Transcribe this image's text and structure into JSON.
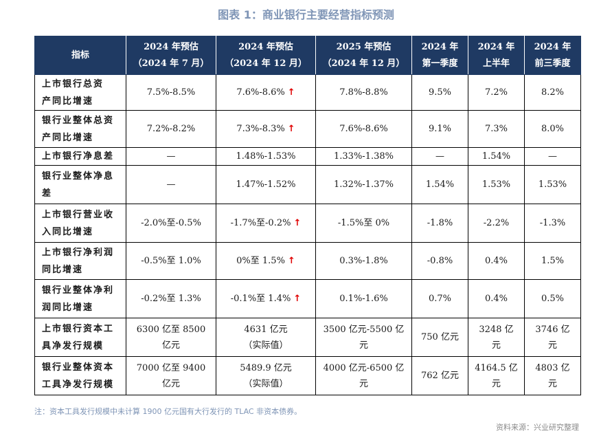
{
  "title": "图表 1：商业银行主要经营指标预测",
  "header": [
    {
      "l1": "指标",
      "l2": ""
    },
    {
      "l1": "2024 年预估",
      "l2": "（2024 年 7 月）"
    },
    {
      "l1": "2024 年预估",
      "l2": "（2024 年 12 月）"
    },
    {
      "l1": "2025 年预估",
      "l2": "（2024 年 12 月）"
    },
    {
      "l1": "2024 年",
      "l2": "第一季度"
    },
    {
      "l1": "2024 年",
      "l2": "上半年"
    },
    {
      "l1": "2024 年",
      "l2": "前三季度"
    }
  ],
  "up_arrow": "↑",
  "rows": [
    {
      "label": [
        "上市银行总资",
        "产同比增速"
      ],
      "c1": [
        "7.5%-8.5%"
      ],
      "c2": [
        "7.6%-8.6%"
      ],
      "c2_up": true,
      "c3": [
        "7.8%-8.8%"
      ],
      "c4": [
        "9.5%"
      ],
      "c5": [
        "7.2%"
      ],
      "c6": [
        "8.2%"
      ]
    },
    {
      "label": [
        "银行业整体总资",
        "产同比增速"
      ],
      "c1": [
        "7.2%-8.2%"
      ],
      "c2": [
        "7.3%-8.3%"
      ],
      "c2_up": true,
      "c3": [
        "7.6%-8.6%"
      ],
      "c4": [
        "9.1%"
      ],
      "c5": [
        "7.3%"
      ],
      "c6": [
        "8.0%"
      ]
    },
    {
      "label": [
        "上市银行净息差"
      ],
      "c1": [
        "—"
      ],
      "c2": [
        "1.48%-1.53%"
      ],
      "c2_up": false,
      "c3": [
        "1.33%-1.38%"
      ],
      "c4": [
        "—"
      ],
      "c5": [
        "1.54%"
      ],
      "c6": [
        "—"
      ]
    },
    {
      "label": [
        "银行业整体净息",
        "差"
      ],
      "c1": [
        "—"
      ],
      "c2": [
        "1.47%-1.52%"
      ],
      "c2_up": false,
      "c3": [
        "1.32%-1.37%"
      ],
      "c4": [
        "1.54%"
      ],
      "c5": [
        "1.53%"
      ],
      "c6": [
        "1.53%"
      ]
    },
    {
      "label": [
        "上市银行营业收",
        "入同比增速"
      ],
      "c1": [
        "-2.0%至-0.5%"
      ],
      "c2": [
        "-1.7%至-0.2%"
      ],
      "c2_up": true,
      "c3": [
        "-1.5%至 0%"
      ],
      "c4": [
        "-1.8%"
      ],
      "c5": [
        "-2.2%"
      ],
      "c6": [
        "-1.3%"
      ]
    },
    {
      "label": [
        "上市银行净利润",
        "同比增速"
      ],
      "c1": [
        "-0.5%至 1.0%"
      ],
      "c2": [
        "0%至 1.5%"
      ],
      "c2_up": true,
      "c3": [
        "0.3%-1.8%"
      ],
      "c4": [
        "-0.8%"
      ],
      "c5": [
        "0.4%"
      ],
      "c6": [
        "1.5%"
      ]
    },
    {
      "label": [
        "银行业整体净利",
        "润同比增速"
      ],
      "c1": [
        "-0.2%至 1.3%"
      ],
      "c2": [
        "-0.1%至 1.4%"
      ],
      "c2_up": true,
      "c3": [
        "0.1%-1.6%"
      ],
      "c4": [
        "0.7%"
      ],
      "c5": [
        "0.4%"
      ],
      "c6": [
        "0.5%"
      ]
    },
    {
      "label": [
        "上市银行资本工",
        "具净发行规模"
      ],
      "c1": [
        "6300 亿至 8500",
        "亿元"
      ],
      "c2": [
        "4631 亿元",
        "（实际值）"
      ],
      "c2_up": false,
      "c3": [
        "3500 亿元-5500 亿",
        "元"
      ],
      "c4": [
        "750 亿元"
      ],
      "c5": [
        "3248 亿",
        "元"
      ],
      "c6": [
        "3746 亿",
        "元"
      ]
    },
    {
      "label": [
        "银行业整体资本",
        "工具净发行规模"
      ],
      "c1": [
        "7000 亿至 9400",
        "亿元"
      ],
      "c2": [
        "5489.9 亿元",
        "（实际值）"
      ],
      "c2_up": false,
      "c3": [
        "4000 亿元-6500 亿",
        "元"
      ],
      "c4": [
        "762 亿元"
      ],
      "c5": [
        "4164.5 亿",
        "元"
      ],
      "c6": [
        "4803 亿",
        "元"
      ]
    }
  ],
  "note": "注：资本工具发行规模中未计算 1900 亿元国有大行发行的 TLAC 非资本债券。",
  "source": "资料来源：兴业研究整理"
}
